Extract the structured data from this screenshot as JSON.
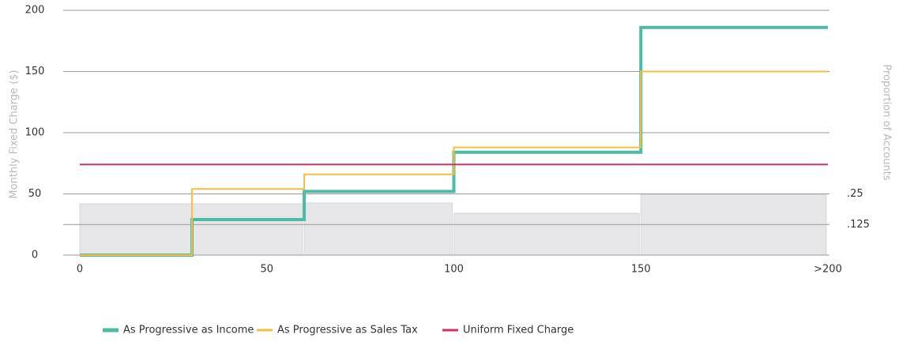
{
  "chart_data": {
    "type": "line",
    "step": "post",
    "ylabel": "Monthly Fixed Charge ($)",
    "y2label": "Proportion of Accounts",
    "x": [
      0,
      30,
      60,
      100,
      150,
      200
    ],
    "xlim": [
      0,
      200
    ],
    "xticks": [
      0,
      50,
      100,
      150,
      {
        "value": 200,
        "label": ">200"
      }
    ],
    "ylim": [
      0,
      200
    ],
    "yticks": [
      0,
      50,
      100,
      150,
      200
    ],
    "y2lim": [
      0,
      1
    ],
    "y2ticks": [
      {
        "value": 0.125,
        "label": ".125"
      },
      {
        "value": 0.25,
        "label": ".25"
      }
    ],
    "grid": true,
    "legend": "bottom",
    "bars": {
      "bins": [
        0,
        60,
        100,
        150,
        200
      ],
      "values": [
        0.21,
        0.213,
        0.171,
        0.248
      ],
      "axis": "y2",
      "color": "#e6e6e8"
    },
    "series": [
      {
        "name": "As Progressive as Income",
        "color": "#4dbba4",
        "width": 4,
        "values": [
          0,
          29,
          52,
          84,
          186,
          186
        ]
      },
      {
        "name": "As Progressive as Sales Tax",
        "color": "#f4bf3f",
        "width": 2,
        "values": [
          0,
          54,
          66,
          88,
          150,
          150
        ]
      },
      {
        "name": "Uniform Fixed Charge",
        "color": "#d2306a",
        "width": 2,
        "values": [
          74,
          74,
          74,
          74,
          74,
          74
        ]
      }
    ]
  }
}
